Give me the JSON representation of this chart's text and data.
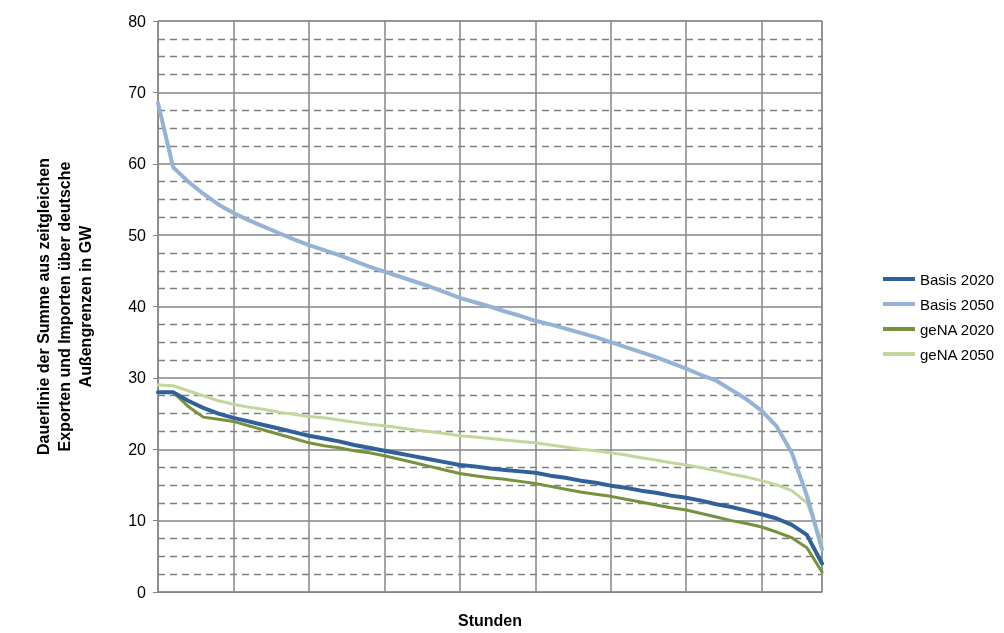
{
  "chart_data": {
    "type": "line",
    "xlabel": "Stunden",
    "ylabel": "Dauerlinie der Summe aus zeitgleichen\nExporten und Importen über deutsche\nAußengrenzen in GW",
    "categories": [
      null,
      null,
      null,
      null,
      null,
      null,
      null,
      null,
      null,
      null,
      null,
      null,
      null,
      null,
      null,
      null,
      null,
      null,
      null,
      null,
      null,
      null,
      null,
      null,
      null,
      null,
      null,
      null,
      null,
      null,
      null,
      null,
      null,
      null,
      null,
      null,
      null,
      null,
      null,
      null,
      null,
      null,
      null,
      null,
      null
    ],
    "series": [
      {
        "name": "Basis 2020",
        "color": "#30619a",
        "values": [
          28.0,
          28.0,
          26.8,
          25.8,
          25.0,
          24.4,
          23.9,
          23.4,
          22.9,
          22.4,
          21.9,
          21.5,
          21.1,
          20.6,
          20.2,
          19.8,
          19.4,
          19.0,
          18.6,
          18.2,
          17.8,
          17.6,
          17.3,
          17.1,
          16.9,
          16.7,
          16.3,
          16.0,
          15.6,
          15.3,
          14.9,
          14.6,
          14.2,
          13.9,
          13.5,
          13.2,
          12.8,
          12.3,
          11.9,
          11.4,
          10.9,
          10.3,
          9.4,
          8.0,
          4.0
        ]
      },
      {
        "name": "Basis 2050",
        "color": "#95b3d7",
        "values": [
          68.5,
          59.5,
          57.5,
          55.8,
          54.3,
          53.1,
          52.1,
          51.2,
          50.3,
          49.4,
          48.6,
          47.9,
          47.2,
          46.4,
          45.6,
          44.9,
          44.2,
          43.5,
          42.8,
          42.0,
          41.2,
          40.6,
          40.0,
          39.3,
          38.7,
          38.0,
          37.5,
          36.9,
          36.3,
          35.7,
          35.0,
          34.3,
          33.6,
          32.9,
          32.1,
          31.3,
          30.4,
          29.6,
          28.3,
          27.0,
          25.4,
          23.2,
          19.5,
          13.5,
          6.0
        ]
      },
      {
        "name": "geNA 2020",
        "color": "#76923c",
        "values": [
          28.0,
          28.0,
          26.0,
          24.5,
          24.2,
          23.9,
          23.3,
          22.7,
          22.1,
          21.5,
          20.9,
          20.5,
          20.2,
          19.8,
          19.5,
          19.1,
          18.6,
          18.1,
          17.6,
          17.1,
          16.6,
          16.3,
          16.0,
          15.8,
          15.5,
          15.2,
          14.8,
          14.4,
          14.0,
          13.7,
          13.4,
          13.0,
          12.6,
          12.2,
          11.8,
          11.5,
          11.0,
          10.5,
          10.0,
          9.6,
          9.1,
          8.4,
          7.6,
          6.2,
          2.8
        ]
      },
      {
        "name": "geNA 2050",
        "color": "#c3d69b",
        "values": [
          29.0,
          28.9,
          28.2,
          27.5,
          26.8,
          26.3,
          25.9,
          25.6,
          25.2,
          24.9,
          24.6,
          24.4,
          24.1,
          23.8,
          23.5,
          23.3,
          23.0,
          22.7,
          22.5,
          22.2,
          21.9,
          21.7,
          21.5,
          21.3,
          21.1,
          20.9,
          20.6,
          20.3,
          20.0,
          19.8,
          19.5,
          19.2,
          18.8,
          18.5,
          18.1,
          17.8,
          17.4,
          17.0,
          16.5,
          16.1,
          15.6,
          15.0,
          14.2,
          12.5,
          7.0
        ]
      }
    ],
    "ylim": [
      0,
      80
    ],
    "yticks": [
      0,
      10,
      20,
      30,
      40,
      50,
      60,
      70,
      80
    ],
    "grid": true,
    "legend": "right",
    "tick_labels": "y",
    "marker": "none",
    "line_style": "solid"
  }
}
